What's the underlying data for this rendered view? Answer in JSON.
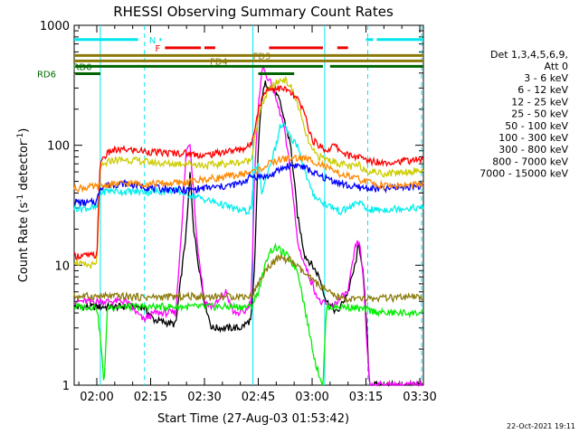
{
  "chart_data": {
    "type": "line",
    "title": "RHESSI Observing Summary Count Rates",
    "xlabel": "Start Time (27-Aug-03 01:53:42)",
    "ylabel_main": "Count Rate (s",
    "ylabel_sup1": "-1",
    "ylabel_mid": " detector",
    "ylabel_sup2": "-1",
    "ylabel_end": ")",
    "footer_date": "22-Oct-2021 19:11",
    "xlim": [
      113.7,
      211
    ],
    "ylim": [
      1,
      1000
    ],
    "yscale": "log",
    "x_ticks": [
      {
        "value": 120,
        "label": "02:00"
      },
      {
        "value": 135,
        "label": "02:15"
      },
      {
        "value": 150,
        "label": "02:30"
      },
      {
        "value": 165,
        "label": "02:45"
      },
      {
        "value": 180,
        "label": "03:00"
      },
      {
        "value": 195,
        "label": "03:15"
      },
      {
        "value": 210,
        "label": "03:30"
      }
    ],
    "y_ticks": [
      {
        "value": 1,
        "label": "1"
      },
      {
        "value": 10,
        "label": "10"
      },
      {
        "value": 100,
        "label": "100"
      },
      {
        "value": 1000,
        "label": "1000"
      }
    ],
    "legend_header": [
      "Det 1,3,4,5,6,9,",
      "Att 0"
    ],
    "series": [
      {
        "name": "3 - 6 keV",
        "color": "#000000",
        "points": [
          [
            113.7,
            4.5
          ],
          [
            125,
            4.5
          ],
          [
            133,
            4.5
          ],
          [
            136,
            3.5
          ],
          [
            142,
            3.2
          ],
          [
            145,
            20
          ],
          [
            146,
            60
          ],
          [
            147,
            20
          ],
          [
            148,
            12
          ],
          [
            150,
            5
          ],
          [
            152,
            3
          ],
          [
            156,
            3
          ],
          [
            160,
            3
          ],
          [
            163,
            3.5
          ],
          [
            164,
            10
          ],
          [
            165,
            100
          ],
          [
            166,
            250
          ],
          [
            167,
            330
          ],
          [
            169,
            300
          ],
          [
            171,
            230
          ],
          [
            174,
            100
          ],
          [
            176,
            25
          ],
          [
            178,
            12
          ],
          [
            180,
            10
          ],
          [
            182,
            8
          ],
          [
            184,
            5
          ],
          [
            187,
            4
          ],
          [
            190,
            6
          ],
          [
            192,
            10
          ],
          [
            193,
            15
          ],
          [
            194,
            10
          ],
          [
            195,
            4
          ],
          [
            196,
            1
          ]
        ]
      },
      {
        "name": "6 - 12 keV",
        "color": "#ff00ff",
        "points": [
          [
            113.7,
            5
          ],
          [
            128,
            5
          ],
          [
            133,
            3.5
          ],
          [
            136,
            4
          ],
          [
            142,
            4
          ],
          [
            144,
            30
          ],
          [
            145,
            95
          ],
          [
            146,
            100
          ],
          [
            147,
            40
          ],
          [
            148,
            15
          ],
          [
            150,
            5
          ],
          [
            152,
            4.5
          ],
          [
            154,
            5
          ],
          [
            156,
            6
          ],
          [
            158,
            4
          ],
          [
            161,
            4
          ],
          [
            163,
            5
          ],
          [
            164,
            60
          ],
          [
            165,
            200
          ],
          [
            166,
            450
          ],
          [
            167,
            400
          ],
          [
            169,
            300
          ],
          [
            172,
            150
          ],
          [
            174,
            60
          ],
          [
            176,
            15
          ],
          [
            178,
            10
          ],
          [
            180,
            7
          ],
          [
            182,
            5
          ],
          [
            185,
            4.5
          ],
          [
            187,
            5
          ],
          [
            190,
            6
          ],
          [
            192,
            14
          ],
          [
            193,
            16
          ],
          [
            194,
            10
          ],
          [
            195,
            3
          ],
          [
            196,
            1
          ]
        ]
      },
      {
        "name": "12 - 25 keV",
        "color": "#00ee00",
        "points": [
          [
            113.7,
            4.5
          ],
          [
            120,
            4.5
          ],
          [
            121,
            2.5
          ],
          [
            122,
            1
          ],
          [
            123,
            4.5
          ],
          [
            135,
            4.5
          ],
          [
            150,
            4.5
          ],
          [
            163,
            4.5
          ],
          [
            165,
            6
          ],
          [
            168,
            13
          ],
          [
            170,
            14
          ],
          [
            173,
            12
          ],
          [
            176,
            9
          ],
          [
            179,
            3
          ],
          [
            181,
            1.5
          ],
          [
            183,
            1
          ],
          [
            184,
            4.5
          ],
          [
            190,
            4.5
          ],
          [
            200,
            4
          ],
          [
            211,
            4
          ]
        ]
      },
      {
        "name": "25 - 50 keV",
        "color": "#00eeee",
        "points": [
          [
            113.7,
            30
          ],
          [
            120,
            30
          ],
          [
            121,
            40
          ],
          [
            123,
            42
          ],
          [
            128,
            41
          ],
          [
            135,
            41
          ],
          [
            142,
            42
          ],
          [
            148,
            37
          ],
          [
            155,
            32
          ],
          [
            159,
            29
          ],
          [
            162,
            28
          ],
          [
            163,
            30
          ],
          [
            164,
            60
          ],
          [
            165,
            70
          ],
          [
            166,
            40
          ],
          [
            168,
            65
          ],
          [
            170,
            100
          ],
          [
            171,
            140
          ],
          [
            172,
            150
          ],
          [
            174,
            115
          ],
          [
            176,
            100
          ],
          [
            178,
            60
          ],
          [
            180,
            40
          ],
          [
            182,
            35
          ],
          [
            184,
            32
          ],
          [
            186,
            30
          ],
          [
            188,
            28
          ],
          [
            191,
            31
          ],
          [
            193,
            34
          ],
          [
            195,
            29
          ],
          [
            200,
            29
          ],
          [
            205,
            30
          ],
          [
            211,
            30
          ]
        ]
      },
      {
        "name": "50 - 100 keV",
        "color": "#cccc00",
        "points": [
          [
            113.7,
            11
          ],
          [
            116,
            10
          ],
          [
            118,
            10
          ],
          [
            120,
            10
          ],
          [
            121,
            65
          ],
          [
            124,
            75
          ],
          [
            128,
            76
          ],
          [
            132,
            74
          ],
          [
            135,
            72
          ],
          [
            140,
            70
          ],
          [
            145,
            71
          ],
          [
            150,
            68
          ],
          [
            155,
            70
          ],
          [
            160,
            72
          ],
          [
            163,
            75
          ],
          [
            164,
            120
          ],
          [
            166,
            220
          ],
          [
            168,
            290
          ],
          [
            170,
            330
          ],
          [
            172,
            360
          ],
          [
            174,
            310
          ],
          [
            176,
            220
          ],
          [
            178,
            130
          ],
          [
            180,
            90
          ],
          [
            182,
            80
          ],
          [
            185,
            75
          ],
          [
            188,
            70
          ],
          [
            191,
            66
          ],
          [
            193,
            68
          ],
          [
            195,
            62
          ],
          [
            200,
            58
          ],
          [
            205,
            60
          ],
          [
            211,
            62
          ]
        ]
      },
      {
        "name": "100 - 300 keV",
        "color": "#ff0000",
        "points": [
          [
            113.7,
            12
          ],
          [
            116,
            12
          ],
          [
            118,
            12
          ],
          [
            120,
            12
          ],
          [
            121,
            75
          ],
          [
            124,
            90
          ],
          [
            128,
            92
          ],
          [
            132,
            90
          ],
          [
            135,
            88
          ],
          [
            140,
            86
          ],
          [
            145,
            86
          ],
          [
            150,
            82
          ],
          [
            155,
            88
          ],
          [
            160,
            92
          ],
          [
            163,
            100
          ],
          [
            165,
            200
          ],
          [
            167,
            290
          ],
          [
            170,
            300
          ],
          [
            173,
            290
          ],
          [
            176,
            240
          ],
          [
            178,
            180
          ],
          [
            180,
            110
          ],
          [
            182,
            100
          ],
          [
            184,
            90
          ],
          [
            186,
            100
          ],
          [
            188,
            90
          ],
          [
            190,
            82
          ],
          [
            193,
            80
          ],
          [
            195,
            75
          ],
          [
            200,
            72
          ],
          [
            205,
            74
          ],
          [
            211,
            76
          ]
        ]
      },
      {
        "name": "300 - 800 keV",
        "color": "#0000ff",
        "points": [
          [
            113.7,
            34
          ],
          [
            116,
            33
          ],
          [
            118,
            33
          ],
          [
            120,
            34
          ],
          [
            121,
            45
          ],
          [
            124,
            47
          ],
          [
            128,
            48
          ],
          [
            132,
            46
          ],
          [
            135,
            44
          ],
          [
            140,
            43
          ],
          [
            145,
            42
          ],
          [
            150,
            44
          ],
          [
            155,
            45
          ],
          [
            160,
            48
          ],
          [
            163,
            55
          ],
          [
            165,
            55
          ],
          [
            168,
            55
          ],
          [
            172,
            65
          ],
          [
            174,
            68
          ],
          [
            176,
            68
          ],
          [
            178,
            65
          ],
          [
            180,
            60
          ],
          [
            182,
            55
          ],
          [
            185,
            52
          ],
          [
            188,
            48
          ],
          [
            191,
            45
          ],
          [
            195,
            44
          ],
          [
            200,
            43
          ],
          [
            205,
            45
          ],
          [
            211,
            46
          ]
        ]
      },
      {
        "name": "800 - 7000 keV",
        "color": "#ff8800",
        "points": [
          [
            113.7,
            44
          ],
          [
            120,
            45
          ],
          [
            123,
            47
          ],
          [
            128,
            48
          ],
          [
            133,
            48
          ],
          [
            140,
            48
          ],
          [
            145,
            49
          ],
          [
            150,
            52
          ],
          [
            155,
            54
          ],
          [
            160,
            57
          ],
          [
            165,
            62
          ],
          [
            168,
            70
          ],
          [
            171,
            76
          ],
          [
            174,
            78
          ],
          [
            177,
            78
          ],
          [
            180,
            75
          ],
          [
            183,
            68
          ],
          [
            186,
            60
          ],
          [
            190,
            55
          ],
          [
            195,
            50
          ],
          [
            200,
            46
          ],
          [
            205,
            46
          ],
          [
            211,
            47
          ]
        ]
      },
      {
        "name": "7000 - 15000 keV",
        "color": "#8b7a0a",
        "points": [
          [
            113.7,
            5.5
          ],
          [
            125,
            5.5
          ],
          [
            135,
            5.4
          ],
          [
            145,
            5.5
          ],
          [
            155,
            5.5
          ],
          [
            163,
            5.5
          ],
          [
            165,
            7
          ],
          [
            168,
            10
          ],
          [
            171,
            11.5
          ],
          [
            174,
            11
          ],
          [
            177,
            9
          ],
          [
            180,
            7.5
          ],
          [
            183,
            6.5
          ],
          [
            186,
            5.5
          ],
          [
            190,
            5.2
          ],
          [
            200,
            5.3
          ],
          [
            211,
            5.4
          ]
        ]
      }
    ],
    "state_bars": [
      {
        "label": "N",
        "color": "#00e5ee",
        "y_value": 760,
        "label_x": 135.5,
        "segments": [
          [
            113.7,
            131.5
          ],
          [
            137.5,
            138
          ],
          [
            195,
            197
          ],
          [
            198,
            211
          ]
        ]
      },
      {
        "label": "F",
        "color": "#ee0000",
        "y_value": 650,
        "label_x": 137,
        "segments": [
          [
            139,
            149
          ],
          [
            150,
            153
          ],
          [
            168,
            183
          ],
          [
            187,
            190
          ]
        ]
      },
      {
        "label": "FD3",
        "color": "#8b7a0a",
        "y_value": 560,
        "label_x": 166,
        "segments": [
          [
            113.7,
            211
          ]
        ]
      },
      {
        "label": "FD4",
        "color": "#8b7a0a",
        "y_value": 505,
        "label_x": 154,
        "segments": [
          [
            113.7,
            211
          ]
        ]
      },
      {
        "label": "RD0",
        "color": "#006400",
        "y_value": 455,
        "label_x": 116,
        "segments": [
          [
            114,
            167
          ],
          [
            167,
            183
          ],
          [
            185,
            211
          ]
        ]
      },
      {
        "label": "RD6",
        "color": "#006400",
        "y_value": 395,
        "label_x": 106,
        "segments": [
          [
            114,
            121
          ],
          [
            165,
            175
          ]
        ]
      }
    ],
    "vertical_markers": [
      {
        "x": 121,
        "color": "#00e5ee",
        "style": "solid"
      },
      {
        "x": 133.3,
        "color": "#00e5ee",
        "style": "dashed"
      },
      {
        "x": 163.5,
        "color": "#00e5ee",
        "style": "solid"
      },
      {
        "x": 183.5,
        "color": "#00e5ee",
        "style": "solid"
      },
      {
        "x": 195.5,
        "color": "#00e5ee",
        "style": "dashed"
      },
      {
        "x": 210.5,
        "color": "#00e5ee",
        "style": "dashed"
      }
    ]
  }
}
